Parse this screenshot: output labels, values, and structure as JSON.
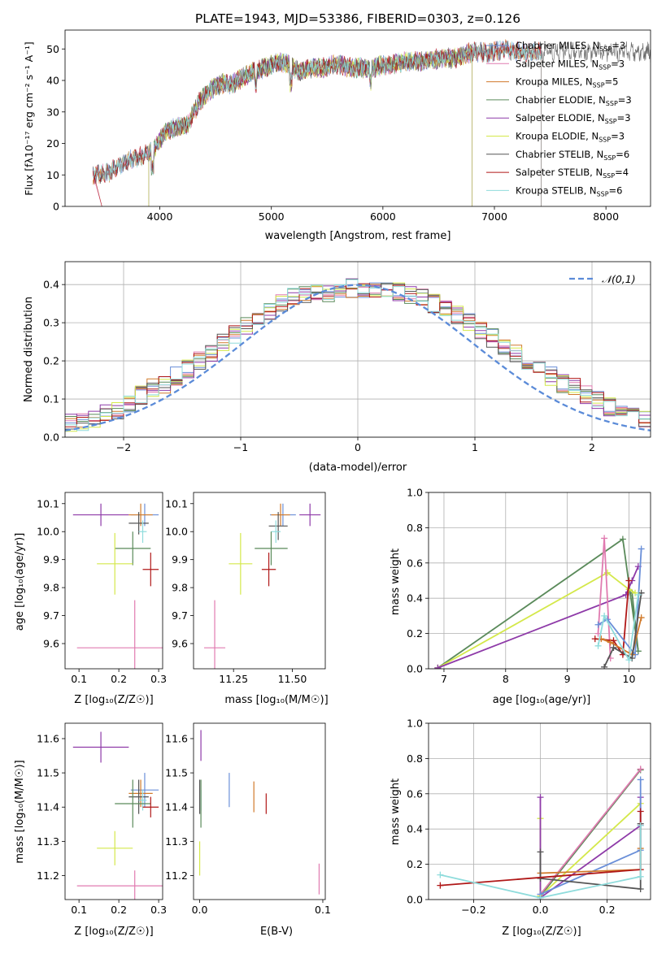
{
  "chart_data": [
    {
      "type": "line",
      "title": "PLATE=1943, MJD=53386, FIBERID=0303, z=0.126",
      "xlabel": "wavelength [Angstrom, rest frame]",
      "ylabel": "Flux [fλ10⁻¹⁷ erg cm⁻² s⁻¹ A⁻¹]",
      "xlim": [
        3150,
        8400
      ],
      "ylim": [
        0,
        56
      ],
      "xticks": [
        4000,
        5000,
        6000,
        7000,
        8000
      ],
      "yticks": [
        0,
        10,
        20,
        30,
        40,
        50
      ],
      "legend_position": "upper-right",
      "spectrum_shape": {
        "x": [
          3400,
          3500,
          3550,
          3650,
          3750,
          3850,
          3950,
          4050,
          4150,
          4250,
          4350,
          4450,
          4550,
          4650,
          4750,
          4850,
          4950,
          5050,
          5150,
          5250,
          5350,
          5450,
          5600,
          5750,
          5900,
          6050,
          6200,
          6350,
          6500,
          6650,
          6800,
          6950,
          7100,
          7200,
          7300,
          7420
        ],
        "y": [
          10,
          10.5,
          11,
          13,
          15,
          16,
          18,
          24,
          25,
          26,
          33,
          37,
          39,
          39,
          41,
          43,
          44,
          46,
          45,
          43,
          44,
          44,
          45,
          44,
          44,
          45,
          46,
          46,
          47,
          47,
          49,
          49,
          50,
          49,
          49,
          49
        ]
      },
      "series": [
        {
          "name": "Chabrier MILES, N_SSP=3",
          "label_main": "Chabrier MILES, N",
          "label_sub": "SSP",
          "label_tail": "=3",
          "color": "#6a8fd8",
          "style": "cross-line",
          "start": 3400,
          "end": 7420
        },
        {
          "name": "Salpeter MILES, N_SSP=3",
          "label_main": "Salpeter MILES, N",
          "label_sub": "SSP",
          "label_tail": "=3",
          "color": "#e07bb0",
          "start": 3400,
          "end": 7420
        },
        {
          "name": "Kroupa MILES, N_SSP=5",
          "label_main": "Kroupa MILES, N",
          "label_sub": "SSP",
          "label_tail": "=5",
          "color": "#d17a2b",
          "start": 3400,
          "end": 7420
        },
        {
          "name": "Chabrier ELODIE, N_SSP=3",
          "label_main": "Chabrier ELODIE, N",
          "label_sub": "SSP",
          "label_tail": "=3",
          "color": "#5a8a5a",
          "start": 3900,
          "end": 6800
        },
        {
          "name": "Salpeter ELODIE, N_SSP=3",
          "label_main": "Salpeter ELODIE, N",
          "label_sub": "SSP",
          "label_tail": "=3",
          "color": "#8e3aa8",
          "start": 3900,
          "end": 6800
        },
        {
          "name": "Kroupa ELODIE, N_SSP=3",
          "label_main": "Kroupa ELODIE, N",
          "label_sub": "SSP",
          "label_tail": "=3",
          "color": "#d4e84a",
          "start": 3900,
          "end": 6800
        },
        {
          "name": "Chabrier STELIB, N_SSP=6",
          "label_main": "Chabrier STELIB, N",
          "label_sub": "SSP",
          "label_tail": "=6",
          "color": "#555555",
          "start": 3400,
          "end": 8400
        },
        {
          "name": "Salpeter STELIB, N_SSP=4",
          "label_main": "Salpeter STELIB, N",
          "label_sub": "SSP",
          "label_tail": "=4",
          "color": "#b01818",
          "start": 3400,
          "end": 7420
        },
        {
          "name": "Kroupa STELIB, N_SSP=6",
          "label_main": "Kroupa STELIB, N",
          "label_sub": "SSP",
          "label_tail": "=6",
          "color": "#8fdcdc",
          "start": 3400,
          "end": 7420
        }
      ]
    },
    {
      "type": "histogram",
      "xlabel": "(data-model)/error",
      "ylabel": "Normed distribution",
      "xlim": [
        -2.5,
        2.5
      ],
      "ylim": [
        0,
        0.46
      ],
      "xticks": [
        -2,
        -1,
        0,
        1,
        2
      ],
      "yticks": [
        0.0,
        0.1,
        0.2,
        0.3,
        0.4
      ],
      "grid": true,
      "bin_width": 0.1,
      "overlay": {
        "name": "N(0,1)",
        "label": "𝒩(0,1)",
        "style": "dashed",
        "color": "#5b8bd8"
      },
      "base_counts": [
        0.04,
        0.04,
        0.05,
        0.06,
        0.07,
        0.09,
        0.11,
        0.13,
        0.14,
        0.16,
        0.18,
        0.2,
        0.22,
        0.25,
        0.27,
        0.29,
        0.31,
        0.33,
        0.35,
        0.37,
        0.37,
        0.38,
        0.38,
        0.39,
        0.39,
        0.39,
        0.39,
        0.38,
        0.38,
        0.37,
        0.37,
        0.35,
        0.34,
        0.32,
        0.3,
        0.28,
        0.26,
        0.24,
        0.22,
        0.2,
        0.18,
        0.16,
        0.14,
        0.13,
        0.11,
        0.1,
        0.08,
        0.07,
        0.06,
        0.05
      ]
    },
    {
      "type": "scatter",
      "xlabel": "Z [log₁₀(Z/Z☉)]",
      "ylabel": "age  [log₁₀(age/yr)]",
      "xlim": [
        0.065,
        0.31
      ],
      "ylim": [
        9.51,
        10.14
      ],
      "xticks": [
        0.1,
        0.2,
        0.3
      ],
      "yticks": [
        9.6,
        9.7,
        9.8,
        9.9,
        10.0,
        10.1
      ],
      "points": [
        {
          "x": 0.155,
          "y": 10.06,
          "xerr": 0.07,
          "yerr": 0.04,
          "color": "#8e3aa8"
        },
        {
          "x": 0.265,
          "y": 10.06,
          "xerr": 0.035,
          "yerr": 0.04,
          "color": "#6a8fd8"
        },
        {
          "x": 0.255,
          "y": 10.06,
          "xerr": 0.03,
          "yerr": 0.04,
          "color": "#d17a2b"
        },
        {
          "x": 0.25,
          "y": 10.03,
          "xerr": 0.025,
          "yerr": 0.04,
          "color": "#555555"
        },
        {
          "x": 0.26,
          "y": 10.0,
          "xerr": 0.01,
          "yerr": 0.04,
          "color": "#8fdcdc"
        },
        {
          "x": 0.235,
          "y": 9.94,
          "xerr": 0.045,
          "yerr": 0.06,
          "color": "#5a8a5a"
        },
        {
          "x": 0.19,
          "y": 9.885,
          "xerr": 0.045,
          "yerr": 0.11,
          "color": "#d4e84a"
        },
        {
          "x": 0.28,
          "y": 9.865,
          "xerr": 0.02,
          "yerr": 0.06,
          "color": "#b01818"
        },
        {
          "x": 0.24,
          "y": 9.585,
          "xerr": 0.145,
          "yerr": 0.17,
          "color": "#e07bb0"
        }
      ]
    },
    {
      "type": "scatter",
      "xlabel": "mass [log₁₀(M/M☉)]",
      "xlim": [
        11.08,
        11.64
      ],
      "ylim": [
        9.51,
        10.14
      ],
      "xticks": [
        11.25,
        11.5
      ],
      "yticks": [
        9.6,
        9.7,
        9.8,
        9.9,
        10.0,
        10.1
      ],
      "points": [
        {
          "x": 11.575,
          "y": 10.06,
          "xerr": 0.045,
          "yerr": 0.04,
          "color": "#8e3aa8"
        },
        {
          "x": 11.46,
          "y": 10.06,
          "xerr": 0.055,
          "yerr": 0.04,
          "color": "#6a8fd8"
        },
        {
          "x": 11.45,
          "y": 10.06,
          "xerr": 0.04,
          "yerr": 0.04,
          "color": "#d17a2b"
        },
        {
          "x": 11.44,
          "y": 10.02,
          "xerr": 0.04,
          "yerr": 0.05,
          "color": "#555555"
        },
        {
          "x": 11.43,
          "y": 10.0,
          "xerr": 0.02,
          "yerr": 0.04,
          "color": "#8fdcdc"
        },
        {
          "x": 11.41,
          "y": 9.94,
          "xerr": 0.07,
          "yerr": 0.06,
          "color": "#5a8a5a"
        },
        {
          "x": 11.28,
          "y": 9.885,
          "xerr": 0.05,
          "yerr": 0.11,
          "color": "#d4e84a"
        },
        {
          "x": 11.4,
          "y": 9.865,
          "xerr": 0.03,
          "yerr": 0.06,
          "color": "#b01818"
        },
        {
          "x": 11.17,
          "y": 9.585,
          "xerr": 0.045,
          "yerr": 0.17,
          "color": "#e07bb0"
        }
      ]
    },
    {
      "type": "line",
      "xlabel": "age  [log₁₀(age/yr)]",
      "ylabel": "mass weight",
      "xlim": [
        6.75,
        10.35
      ],
      "ylim": [
        0,
        1.0
      ],
      "xticks": [
        7,
        8,
        9,
        10
      ],
      "yticks": [
        0.0,
        0.2,
        0.4,
        0.6,
        0.8,
        1.0
      ],
      "grid": true,
      "series": [
        {
          "color": "#5a8a5a",
          "x": [
            6.9,
            9.9,
            10.15,
            10.05
          ],
          "y": [
            0.005,
            0.735,
            0.1,
            0.43
          ]
        },
        {
          "color": "#d4e84a",
          "x": [
            6.9,
            9.65,
            10.0,
            10.1
          ],
          "y": [
            0.005,
            0.545,
            0.45,
            0.43
          ]
        },
        {
          "color": "#8e3aa8",
          "x": [
            6.9,
            9.95,
            10.05,
            10.15
          ],
          "y": [
            0.005,
            0.42,
            0.5,
            0.58
          ]
        },
        {
          "color": "#e07bb0",
          "x": [
            9.5,
            9.6,
            9.7
          ],
          "y": [
            0.2,
            0.74,
            0.06
          ]
        },
        {
          "color": "#b01818",
          "x": [
            9.45,
            9.75,
            9.9,
            10.0
          ],
          "y": [
            0.17,
            0.16,
            0.08,
            0.5
          ]
        },
        {
          "color": "#6a8fd8",
          "x": [
            9.5,
            9.65,
            10.1,
            10.2
          ],
          "y": [
            0.25,
            0.28,
            0.08,
            0.68
          ]
        },
        {
          "color": "#d17a2b",
          "x": [
            9.55,
            9.7,
            10.05,
            10.2
          ],
          "y": [
            0.17,
            0.15,
            0.08,
            0.29
          ]
        },
        {
          "color": "#555555",
          "x": [
            9.6,
            9.75,
            10.05,
            10.2
          ],
          "y": [
            0.01,
            0.12,
            0.06,
            0.43
          ]
        },
        {
          "color": "#8fdcdc",
          "x": [
            9.5,
            9.6,
            10.0,
            10.15
          ],
          "y": [
            0.13,
            0.3,
            0.05,
            0.42
          ]
        }
      ]
    },
    {
      "type": "scatter",
      "xlabel": "Z [log₁₀(Z/Z☉)]",
      "ylabel": "mass [log₁₀(M/M☉)]",
      "xlim": [
        0.065,
        0.31
      ],
      "ylim": [
        11.13,
        11.645
      ],
      "xticks": [
        0.1,
        0.2,
        0.3
      ],
      "yticks": [
        11.2,
        11.3,
        11.4,
        11.5,
        11.6
      ],
      "points": [
        {
          "x": 0.155,
          "y": 11.575,
          "xerr": 0.07,
          "yerr": 0.045,
          "color": "#8e3aa8"
        },
        {
          "x": 0.265,
          "y": 11.45,
          "xerr": 0.035,
          "yerr": 0.05,
          "color": "#6a8fd8"
        },
        {
          "x": 0.255,
          "y": 11.44,
          "xerr": 0.03,
          "yerr": 0.04,
          "color": "#d17a2b"
        },
        {
          "x": 0.25,
          "y": 11.43,
          "xerr": 0.025,
          "yerr": 0.05,
          "color": "#555555"
        },
        {
          "x": 0.26,
          "y": 11.42,
          "xerr": 0.01,
          "yerr": 0.03,
          "color": "#8fdcdc"
        },
        {
          "x": 0.235,
          "y": 11.41,
          "xerr": 0.045,
          "yerr": 0.07,
          "color": "#5a8a5a"
        },
        {
          "x": 0.19,
          "y": 11.28,
          "xerr": 0.045,
          "yerr": 0.05,
          "color": "#d4e84a"
        },
        {
          "x": 0.28,
          "y": 11.4,
          "xerr": 0.02,
          "yerr": 0.03,
          "color": "#b01818"
        },
        {
          "x": 0.24,
          "y": 11.17,
          "xerr": 0.145,
          "yerr": 0.045,
          "color": "#e07bb0"
        }
      ]
    },
    {
      "type": "scatter",
      "xlabel": "E(B-V)",
      "xlim": [
        -0.005,
        0.102
      ],
      "ylim": [
        11.13,
        11.645
      ],
      "xticks": [
        0.0,
        0.1
      ],
      "yticks": [
        11.2,
        11.3,
        11.4,
        11.5,
        11.6
      ],
      "points": [
        {
          "x": 0.001,
          "y": 11.58,
          "yerr": 0.045,
          "color": "#8e3aa8"
        },
        {
          "x": 0.024,
          "y": 11.45,
          "yerr": 0.05,
          "color": "#6a8fd8"
        },
        {
          "x": 0.044,
          "y": 11.43,
          "yerr": 0.045,
          "color": "#d17a2b"
        },
        {
          "x": 0.0,
          "y": 11.43,
          "yerr": 0.05,
          "color": "#555555"
        },
        {
          "x": 0.001,
          "y": 11.42,
          "yerr": 0.03,
          "color": "#8fdcdc"
        },
        {
          "x": 0.001,
          "y": 11.41,
          "yerr": 0.07,
          "color": "#5a8a5a"
        },
        {
          "x": 0.0,
          "y": 11.25,
          "yerr": 0.05,
          "color": "#d4e84a"
        },
        {
          "x": 0.054,
          "y": 11.41,
          "yerr": 0.03,
          "color": "#b01818"
        },
        {
          "x": 0.097,
          "y": 11.19,
          "yerr": 0.045,
          "color": "#e07bb0"
        }
      ]
    },
    {
      "type": "line",
      "xlabel": "Z [log₁₀(Z/Z☉)]",
      "ylabel": "mass weight",
      "xlim": [
        -0.335,
        0.33
      ],
      "ylim": [
        0,
        1.0
      ],
      "xticks": [
        -0.2,
        0.0,
        0.2
      ],
      "yticks": [
        0.0,
        0.2,
        0.4,
        0.6,
        0.8,
        1.0
      ],
      "grid": true,
      "series": [
        {
          "color": "#5a8a5a",
          "x": [
            0.0,
            0.3
          ],
          "y": [
            0.02,
            0.735
          ]
        },
        {
          "color": "#e07bb0",
          "x": [
            0.0,
            0.3
          ],
          "y": [
            0.03,
            0.74
          ]
        },
        {
          "color": "#d4e84a",
          "x": [
            0.0,
            0.0,
            0.3
          ],
          "y": [
            0.46,
            0.02,
            0.545
          ]
        },
        {
          "color": "#8e3aa8",
          "x": [
            0.0,
            0.0,
            0.3,
            0.3
          ],
          "y": [
            0.58,
            0.01,
            0.42,
            0.58
          ]
        },
        {
          "color": "#6a8fd8",
          "x": [
            0.0,
            0.3,
            0.3
          ],
          "y": [
            0.03,
            0.28,
            0.68
          ]
        },
        {
          "color": "#d17a2b",
          "x": [
            0.0,
            0.3,
            0.3
          ],
          "y": [
            0.15,
            0.17,
            0.29
          ]
        },
        {
          "color": "#555555",
          "x": [
            0.0,
            0.0,
            0.3,
            0.3
          ],
          "y": [
            0.27,
            0.12,
            0.06,
            0.43
          ]
        },
        {
          "color": "#b01818",
          "x": [
            -0.3,
            0.3,
            0.3
          ],
          "y": [
            0.08,
            0.17,
            0.5
          ]
        },
        {
          "color": "#8fdcdc",
          "x": [
            -0.3,
            0.0,
            0.3,
            0.3
          ],
          "y": [
            0.14,
            0.01,
            0.13,
            0.42
          ]
        }
      ]
    }
  ]
}
